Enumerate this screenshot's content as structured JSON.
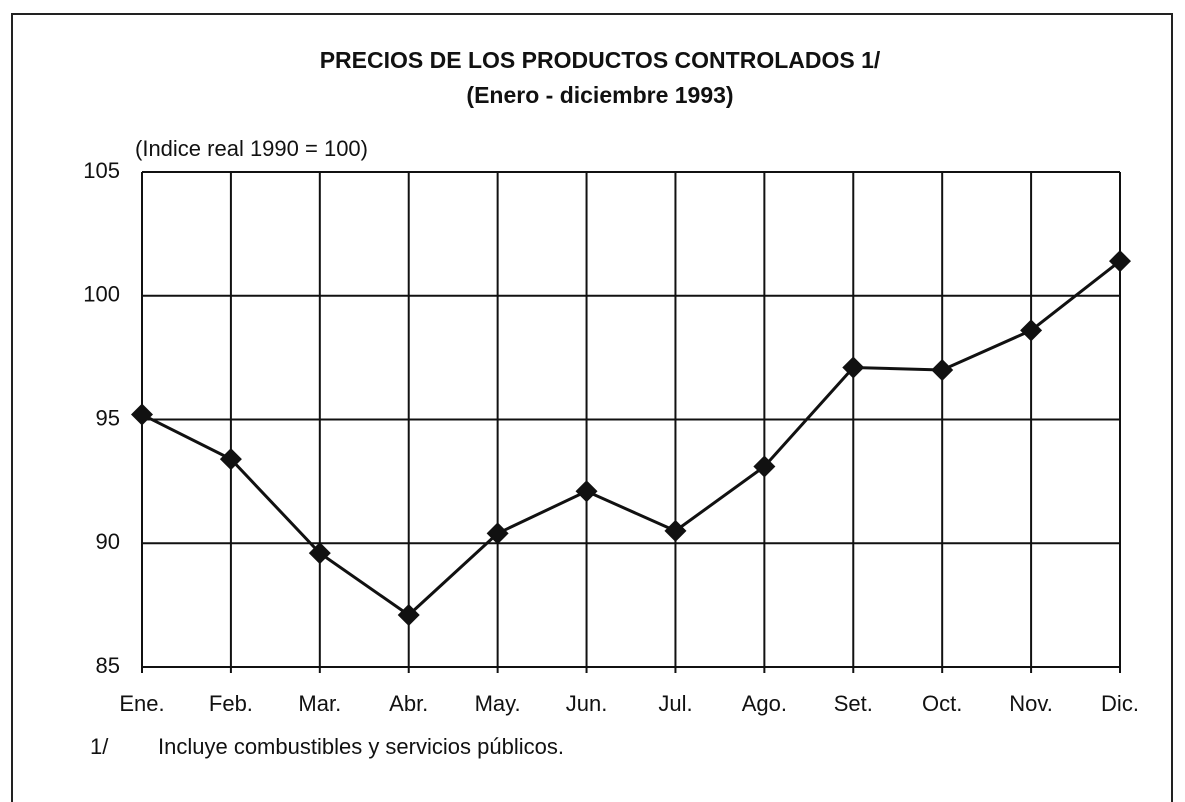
{
  "chart_data": {
    "type": "line",
    "title": "PRECIOS DE LOS PRODUCTOS CONTROLADOS 1/",
    "subtitle": "(Enero - diciembre 1993)",
    "y_label": "(Indice real 1990 = 100)",
    "categories": [
      "Ene.",
      "Feb.",
      "Mar.",
      "Abr.",
      "May.",
      "Jun.",
      "Jul.",
      "Ago.",
      "Set.",
      "Oct.",
      "Nov.",
      "Dic."
    ],
    "values": [
      95.2,
      93.4,
      89.6,
      87.1,
      90.4,
      92.1,
      90.5,
      93.1,
      97.1,
      97.0,
      98.6,
      101.4
    ],
    "color": "#111111",
    "ylim": [
      85,
      105
    ],
    "yticks": [
      85,
      90,
      95,
      100,
      105
    ],
    "grid": true,
    "footnote": {
      "marker": "1/",
      "text": "Incluye combustibles y servicios públicos."
    }
  }
}
